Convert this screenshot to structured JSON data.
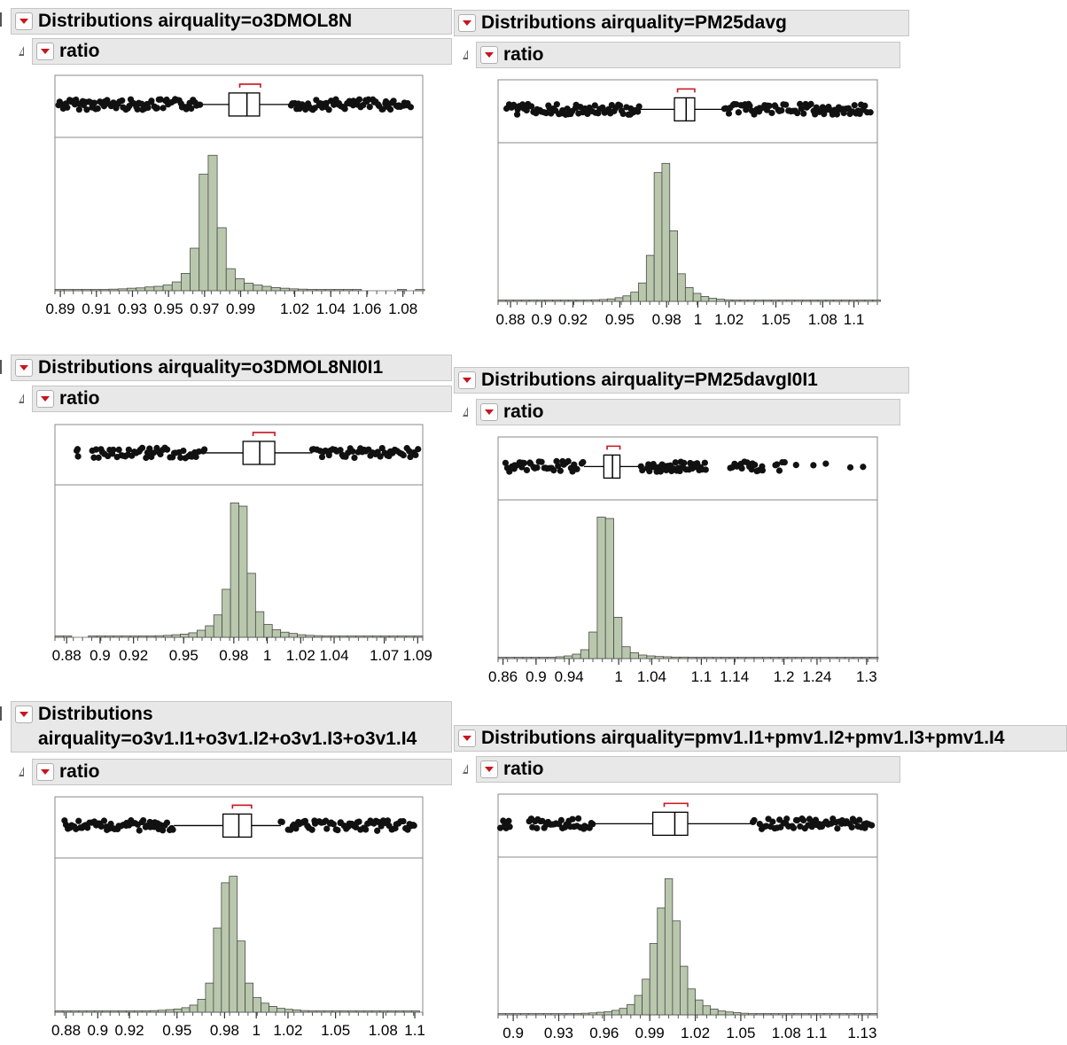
{
  "colors": {
    "bar_fill": "#b9c8ad",
    "bar_stroke": "#4a4a4a",
    "bracket": "#c8141e",
    "header_bg": "#e8e8e8"
  },
  "icons": [
    "red-triangle-menu-icon",
    "disclosure-triangle-icon"
  ],
  "panels": [
    {
      "title": "Distributions airquality=o3DMOL8N",
      "subtitle": "ratio"
    },
    {
      "title": "Distributions airquality=PM25davg",
      "subtitle": "ratio"
    },
    {
      "title": "Distributions airquality=o3DMOL8NI0I1",
      "subtitle": "ratio"
    },
    {
      "title": "Distributions airquality=PM25davgI0I1",
      "subtitle": "ratio"
    },
    {
      "title": "Distributions\nairquality=o3v1.I1+o3v1.I2+o3v1.I3+o3v1.I4",
      "subtitle": "ratio"
    },
    {
      "title": "Distributions airquality=pmv1.I1+pmv1.I2+pmv1.I3+pmv1.I4",
      "subtitle": "ratio"
    }
  ],
  "chart_data": [
    {
      "type": "bar",
      "subtype": "histogram with outlier box plot",
      "variable": "ratio",
      "xlim": [
        0.887,
        1.091
      ],
      "ticks": [
        0.89,
        0.91,
        0.93,
        0.95,
        0.97,
        0.99,
        1.02,
        1.04,
        1.06,
        1.08
      ],
      "bin_start": 0.887,
      "bin_width": 0.005,
      "counts": [
        2,
        2,
        1,
        3,
        3,
        4,
        5,
        6,
        8,
        9,
        12,
        14,
        18,
        28,
        55,
        135,
        370,
        430,
        200,
        70,
        38,
        24,
        18,
        14,
        10,
        8,
        6,
        5,
        3,
        2,
        2,
        1,
        1,
        1,
        0,
        0,
        0,
        0,
        1,
        0,
        1
      ],
      "ylim": [
        0,
        470
      ],
      "box": {
        "q1": 0.9835,
        "median": 0.9935,
        "q3": 1.0005,
        "whisker_low": 0.968,
        "whisker_high": 1.018,
        "shortest_half": [
          0.9895,
          1.001
        ]
      },
      "outliers": [
        0.889,
        0.892,
        0.898,
        0.902,
        0.905,
        0.908,
        0.911,
        0.914,
        0.918,
        0.922,
        0.926,
        0.93,
        0.934,
        0.938,
        0.942,
        0.946,
        0.95,
        0.954,
        0.958,
        0.962,
        0.966,
        1.02,
        1.024,
        1.028,
        1.032,
        1.036,
        1.04,
        1.044,
        1.048,
        1.052,
        1.056,
        1.06,
        1.064,
        1.068,
        1.072,
        1.076,
        1.08,
        1.084
      ]
    },
    {
      "type": "bar",
      "subtype": "histogram with outlier box plot",
      "variable": "ratio",
      "xlim": [
        0.872,
        1.115
      ],
      "ticks": [
        0.88,
        0.9,
        0.92,
        0.95,
        0.98,
        1,
        1.02,
        1.05,
        1.08,
        1.1
      ],
      "bin_start": 0.872,
      "bin_width": 0.005,
      "counts": [
        1,
        1,
        1,
        1,
        1,
        1,
        1,
        2,
        2,
        2,
        3,
        4,
        5,
        6,
        8,
        12,
        18,
        30,
        60,
        150,
        420,
        450,
        230,
        90,
        45,
        26,
        16,
        10,
        7,
        5,
        3,
        2,
        2,
        1,
        1,
        1,
        1,
        1,
        1,
        1,
        1,
        1,
        1,
        1,
        1,
        1,
        1,
        1,
        1
      ],
      "ylim": [
        0,
        500
      ],
      "box": {
        "q1": 0.985,
        "median": 0.9925,
        "q3": 0.998,
        "whisker_low": 0.963,
        "whisker_high": 1.017,
        "shortest_half": [
          0.987,
          0.998
        ]
      },
      "outliers": [
        0.878,
        0.885,
        0.886,
        0.89,
        0.895,
        0.9,
        0.905,
        0.91,
        0.915,
        0.92,
        0.925,
        0.93,
        0.935,
        0.94,
        0.945,
        0.95,
        0.955,
        0.96,
        1.02,
        1.025,
        1.03,
        1.035,
        1.04,
        1.045,
        1.05,
        1.055,
        1.06,
        1.065,
        1.07,
        1.075,
        1.08,
        1.085,
        1.09,
        1.095,
        1.1,
        1.105,
        1.11
      ]
    },
    {
      "type": "bar",
      "subtype": "histogram with outlier box plot",
      "variable": "ratio",
      "xlim": [
        0.873,
        1.093
      ],
      "ticks": [
        0.88,
        0.9,
        0.92,
        0.95,
        0.98,
        1,
        1.02,
        1.04,
        1.07,
        1.09
      ],
      "bin_start": 0.873,
      "bin_width": 0.005,
      "counts": [
        1,
        1,
        0,
        0,
        1,
        2,
        2,
        2,
        3,
        3,
        4,
        4,
        5,
        6,
        8,
        10,
        14,
        22,
        36,
        70,
        150,
        420,
        410,
        200,
        80,
        40,
        24,
        16,
        12,
        8,
        6,
        5,
        4,
        3,
        2,
        2,
        2,
        1,
        1,
        1,
        1,
        1,
        1,
        1
      ],
      "ylim": [
        0,
        460
      ],
      "box": {
        "q1": 0.9855,
        "median": 0.9955,
        "q3": 1.0045,
        "whisker_low": 0.963,
        "whisker_high": 1.027,
        "shortest_half": [
          0.9915,
          1.0045
        ]
      },
      "outliers": [
        0.886,
        0.887,
        0.895,
        0.899,
        0.903,
        0.907,
        0.911,
        0.915,
        0.919,
        0.923,
        0.927,
        0.931,
        0.935,
        0.939,
        0.943,
        0.947,
        0.951,
        0.955,
        0.959,
        1.03,
        1.034,
        1.038,
        1.042,
        1.046,
        1.05,
        1.054,
        1.058,
        1.062,
        1.066,
        1.07,
        1.074,
        1.078,
        1.082,
        1.086,
        1.09
      ]
    },
    {
      "type": "bar",
      "subtype": "histogram with outlier box plot",
      "variable": "ratio",
      "xlim": [
        0.854,
        1.313
      ],
      "ticks": [
        0.86,
        0.9,
        0.94,
        1,
        1.04,
        1.1,
        1.14,
        1.2,
        1.24,
        1.3
      ],
      "bin_start": 0.854,
      "bin_width": 0.01,
      "counts": [
        1,
        1,
        1,
        1,
        2,
        3,
        4,
        6,
        9,
        15,
        30,
        90,
        480,
        475,
        140,
        40,
        20,
        12,
        9,
        7,
        6,
        5,
        5,
        4,
        4,
        3,
        3,
        3,
        2,
        2,
        2,
        2,
        2,
        2,
        2,
        2,
        2,
        1,
        1,
        1,
        1,
        1,
        1,
        1,
        1,
        1
      ],
      "ylim": [
        0,
        520
      ],
      "box": {
        "q1": 0.982,
        "median": 0.9925,
        "q3": 1.0015,
        "whisker_low": 0.958,
        "whisker_high": 1.027,
        "shortest_half": [
          0.986,
          1.0015
        ]
      },
      "outliers": [
        0.864,
        0.868,
        0.875,
        0.884,
        0.889,
        0.894,
        0.899,
        0.904,
        0.909,
        0.914,
        0.919,
        0.924,
        0.929,
        0.934,
        0.939,
        0.944,
        0.949,
        1.034,
        1.04,
        1.046,
        1.052,
        1.058,
        1.064,
        1.07,
        1.076,
        1.082,
        1.088,
        1.094,
        1.1,
        1.106,
        1.135,
        1.145,
        1.155,
        1.165,
        1.175,
        1.19,
        1.2,
        1.215,
        1.235,
        1.25,
        1.28,
        1.295
      ]
    },
    {
      "type": "bar",
      "subtype": "histogram with outlier box plot",
      "variable": "ratio",
      "xlim": [
        0.873,
        1.105
      ],
      "ticks": [
        0.88,
        0.9,
        0.92,
        0.95,
        0.98,
        1,
        1.02,
        1.05,
        1.08,
        1.1
      ],
      "bin_start": 0.873,
      "bin_width": 0.005,
      "counts": [
        1,
        1,
        1,
        2,
        2,
        2,
        2,
        3,
        3,
        3,
        4,
        4,
        5,
        6,
        8,
        10,
        14,
        22,
        40,
        90,
        260,
        400,
        420,
        220,
        90,
        45,
        28,
        18,
        12,
        9,
        7,
        5,
        4,
        3,
        3,
        2,
        2,
        2,
        1,
        1,
        1,
        1,
        1,
        1,
        1,
        1
      ],
      "ylim": [
        0,
        460
      ],
      "box": {
        "q1": 0.979,
        "median": 0.989,
        "q3": 0.997,
        "whisker_low": 0.948,
        "whisker_high": 1.0155,
        "shortest_half": [
          0.985,
          0.997
        ]
      },
      "outliers": [
        0.879,
        0.881,
        0.885,
        0.89,
        0.895,
        0.9,
        0.905,
        0.91,
        0.915,
        0.92,
        0.925,
        0.93,
        0.935,
        0.94,
        0.945,
        1.02,
        1.025,
        1.03,
        1.035,
        1.04,
        1.045,
        1.05,
        1.055,
        1.06,
        1.065,
        1.07,
        1.075,
        1.08,
        1.085,
        1.09,
        1.095,
        1.1
      ]
    },
    {
      "type": "bar",
      "subtype": "histogram with outlier box plot",
      "variable": "ratio",
      "xlim": [
        0.89,
        1.14
      ],
      "ticks": [
        0.9,
        0.93,
        0.96,
        0.99,
        1.02,
        1.05,
        1.08,
        1.1,
        1.13
      ],
      "bin_start": 0.89,
      "bin_width": 0.005,
      "counts": [
        1,
        1,
        1,
        1,
        1,
        2,
        2,
        3,
        3,
        4,
        4,
        5,
        6,
        8,
        10,
        14,
        20,
        32,
        60,
        110,
        220,
        330,
        420,
        290,
        150,
        80,
        46,
        28,
        18,
        12,
        9,
        7,
        5,
        4,
        3,
        3,
        2,
        2,
        2,
        2,
        2,
        3,
        2,
        1,
        1,
        1,
        1,
        1,
        1,
        1
      ],
      "ylim": [
        0,
        470
      ],
      "box": {
        "q1": 0.992,
        "median": 1.0065,
        "q3": 1.015,
        "whisker_low": 0.953,
        "whisker_high": 1.058,
        "shortest_half": [
          0.9995,
          1.015
        ]
      },
      "outliers": [
        0.892,
        0.894,
        0.898,
        0.91,
        0.914,
        0.918,
        0.922,
        0.926,
        0.93,
        0.934,
        0.938,
        0.942,
        0.946,
        0.95,
        1.062,
        1.066,
        1.07,
        1.074,
        1.078,
        1.082,
        1.086,
        1.09,
        1.094,
        1.1,
        1.104,
        1.108,
        1.112,
        1.116,
        1.12,
        1.124,
        1.128,
        1.132,
        1.136
      ]
    }
  ]
}
